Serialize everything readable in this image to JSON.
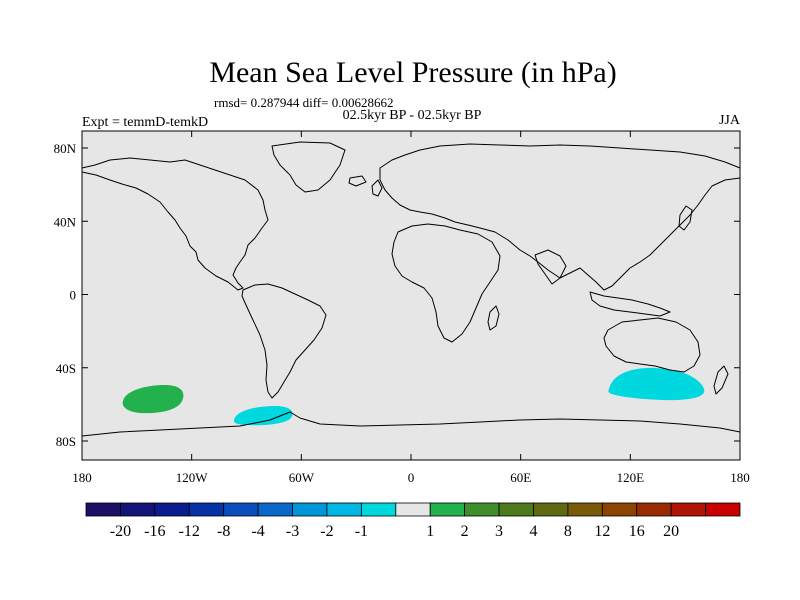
{
  "figure": {
    "title": "Mean Sea Level Pressure (in hPa)",
    "stats_line": "rmsd= 0.287944 diff= 0.00628662",
    "period_line": "02.5kyr BP - 02.5kyr BP",
    "left_label": "Expt = temmD-temkD",
    "right_label": "JJA"
  },
  "axes": {
    "x_ticks": [
      "180",
      "120W",
      "60W",
      "0",
      "60E",
      "120E",
      "180"
    ],
    "y_ticks": [
      "80N",
      "40N",
      "0",
      "40S",
      "80S"
    ]
  },
  "colors": {
    "map_background": "#e6e6e6",
    "coastline": "#000000",
    "positive_anomaly": "#22b14c",
    "negative_anomaly": "#00d8e0"
  },
  "anomalies": [
    {
      "label": "1",
      "region": "South Pacific near 60S, 135W"
    },
    {
      "label": "-1",
      "region": "Southern Ocean near 65S, 80W"
    },
    {
      "label": "-1",
      "region": "Southern Ocean near 50S, 130E"
    }
  ],
  "colorbar": {
    "colors": [
      "#1c0f66",
      "#121478",
      "#0b1d8e",
      "#0533a5",
      "#0a4dbd",
      "#0a68c8",
      "#0096d8",
      "#00b6e2",
      "#00d8e0",
      "#e6e6e6",
      "#22b14c",
      "#3f8e2c",
      "#4d7a1b",
      "#5f6a10",
      "#7a5a09",
      "#8c4405",
      "#9a2a04",
      "#b01404",
      "#c80000"
    ],
    "labels": [
      "-20",
      "-16",
      "-12",
      "-8",
      "-4",
      "-3",
      "-2",
      "-1",
      "1",
      "2",
      "3",
      "4",
      "8",
      "12",
      "16",
      "20"
    ]
  }
}
